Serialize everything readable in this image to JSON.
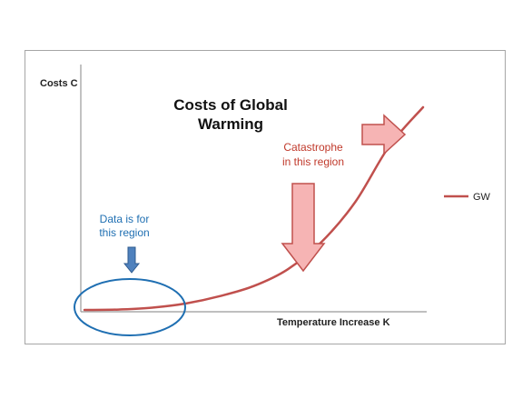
{
  "chart_data": {
    "type": "line",
    "title_lines": [
      "Costs of Global",
      "Warming"
    ],
    "xlabel": "Temperature Increase K",
    "ylabel": "Costs C",
    "x": [
      0,
      1,
      2,
      3,
      4,
      5,
      6,
      7,
      8,
      9,
      10
    ],
    "series": [
      {
        "name": "GW",
        "values": [
          0.0,
          0.2,
          1.1,
          3.2,
          6.8,
          11.8,
          20.0,
          33.5,
          53.3,
          80.8,
          100
        ]
      }
    ],
    "xlim": [
      0,
      10
    ],
    "ylim": [
      0,
      100
    ],
    "grid": false,
    "legend_position": "right",
    "colors": {
      "series": "#c0504d",
      "annotation_red": "#c0392b",
      "annotation_blue": "#1f6fb2",
      "arrow_red_fill": "#f6b4b4",
      "arrow_red_stroke": "#c0504d",
      "arrow_blue_fill": "#4f81bd"
    },
    "annotations": [
      {
        "name": "catastrophe",
        "lines": [
          "Catastrophe",
          "in this region"
        ]
      },
      {
        "name": "data-region",
        "lines": [
          "Data is for",
          "this region"
        ]
      }
    ]
  }
}
